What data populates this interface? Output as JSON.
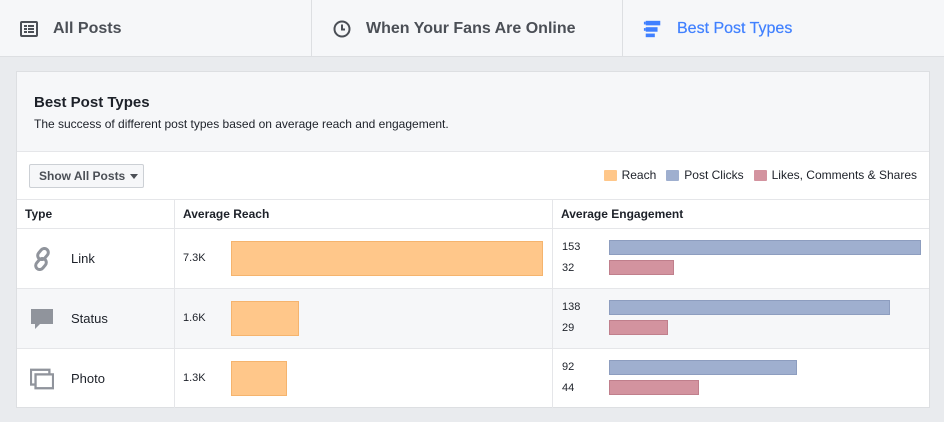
{
  "tabs": [
    {
      "label": "All Posts",
      "icon": "list-icon"
    },
    {
      "label": "When Your Fans Are Online",
      "icon": "clock-icon"
    },
    {
      "label": "Best Post Types",
      "icon": "post-types-icon",
      "active": true
    }
  ],
  "card": {
    "title": "Best Post Types",
    "subtitle": "The success of different post types based on average reach and engagement."
  },
  "filter": {
    "label": "Show All Posts"
  },
  "legend": [
    {
      "label": "Reach",
      "color": "#ffc78a"
    },
    {
      "label": "Post Clicks",
      "color": "#9fafcf"
    },
    {
      "label": "Likes, Comments & Shares",
      "color": "#d3939f"
    }
  ],
  "table": {
    "headers": {
      "type": "Type",
      "reach": "Average Reach",
      "engagement": "Average Engagement"
    },
    "rows": [
      {
        "type": "Link",
        "icon": "link-icon",
        "reach_label": "7.3K",
        "reach": 7300,
        "clicks": 153,
        "likes": 32
      },
      {
        "type": "Status",
        "icon": "speech-bubble-icon",
        "reach_label": "1.6K",
        "reach": 1600,
        "clicks": 138,
        "likes": 29
      },
      {
        "type": "Photo",
        "icon": "photo-icon",
        "reach_label": "1.3K",
        "reach": 1300,
        "clicks": 92,
        "likes": 44
      }
    ]
  }
}
